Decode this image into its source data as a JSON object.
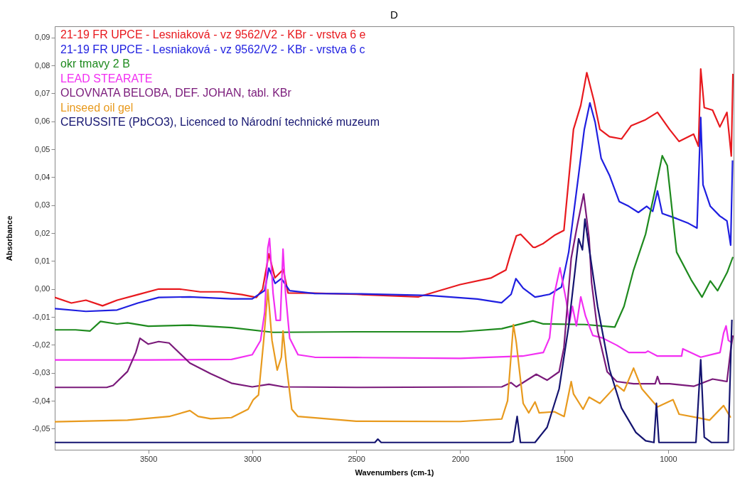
{
  "chart_data": {
    "type": "line",
    "title": "D",
    "xlabel": "Wavenumbers (cm-1)",
    "ylabel": "Absorbance",
    "legend": "top left",
    "xlim": [
      3950,
      685
    ],
    "xticks": [
      3500,
      3000,
      2500,
      2000,
      1500,
      1000
    ],
    "ylim": [
      -0.0575,
      0.094
    ],
    "yticks": [
      {
        "value": 0.09,
        "label": "0,09"
      },
      {
        "value": 0.08,
        "label": "0,08"
      },
      {
        "value": 0.07,
        "label": "0,07"
      },
      {
        "value": 0.06,
        "label": "0,06"
      },
      {
        "value": 0.05,
        "label": "0,05"
      },
      {
        "value": 0.04,
        "label": "0,04"
      },
      {
        "value": 0.03,
        "label": "0,03"
      },
      {
        "value": 0.02,
        "label": "0,02"
      },
      {
        "value": 0.01,
        "label": "0,01"
      },
      {
        "value": 0,
        "label": "0,00"
      },
      {
        "value": -0.01,
        "label": "-0,01"
      },
      {
        "value": -0.02,
        "label": "-0,02"
      },
      {
        "value": -0.03,
        "label": "-0,03"
      },
      {
        "value": -0.04,
        "label": "-0,04"
      },
      {
        "value": -0.05,
        "label": "-0,05"
      }
    ],
    "series": [
      {
        "name": "21-19 FR UPCE - Lesniaková - vz  9562/V2 - KBr - vrstva 6 e",
        "color": "#e8191e",
        "x": [
          3950,
          3870,
          3800,
          3720,
          3650,
          3550,
          3450,
          3350,
          3250,
          3150,
          3050,
          2980,
          2950,
          2920,
          2891,
          2851,
          2828,
          2700,
          2500,
          2200,
          2000,
          1850,
          1780,
          1760,
          1730,
          1709,
          1650,
          1640,
          1600,
          1547,
          1501,
          1455,
          1420,
          1391,
          1357,
          1328,
          1282,
          1224,
          1178,
          1108,
          1051,
          993,
          947,
          877,
          854,
          843,
          826,
          786,
          751,
          717,
          696,
          688
        ],
        "values": [
          -0.003,
          -0.005,
          -0.004,
          -0.006,
          -0.004,
          -0.002,
          0,
          0,
          -0.001,
          -0.001,
          -0.002,
          -0.003,
          0,
          0.0126,
          0.004,
          0.007,
          -0.0014,
          -0.0015,
          -0.0019,
          -0.0028,
          0.0016,
          0.004,
          0.0068,
          0.012,
          0.019,
          0.0196,
          0.015,
          0.0149,
          0.0163,
          0.0192,
          0.021,
          0.0571,
          0.0657,
          0.0774,
          0.0675,
          0.0571,
          0.0545,
          0.0537,
          0.0584,
          0.0606,
          0.0632,
          0.0571,
          0.0528,
          0.0554,
          0.0511,
          0.0787,
          0.0649,
          0.064,
          0.058,
          0.0632,
          0.0476,
          0.077
        ]
      },
      {
        "name": "21-19 FR UPCE - Lesniaková - vz  9562/V2 - KBr - vrstva 6 c",
        "color": "#1f1fe0",
        "x": [
          3950,
          3800,
          3650,
          3550,
          3450,
          3300,
          3100,
          3000,
          2940,
          2920,
          2890,
          2860,
          2820,
          2700,
          2494,
          2148,
          1917,
          1801,
          1755,
          1732,
          1697,
          1640,
          1570,
          1513,
          1478,
          1432,
          1403,
          1376,
          1351,
          1322,
          1282,
          1235,
          1189,
          1143,
          1103,
          1074,
          1051,
          1028,
          959,
          902,
          861,
          843,
          832,
          797,
          751,
          717,
          699,
          690
        ],
        "values": [
          -0.007,
          -0.008,
          -0.0075,
          -0.005,
          -0.003,
          -0.0028,
          -0.0035,
          -0.0035,
          -0.0005,
          0.0075,
          0.002,
          0.0037,
          -0.0006,
          -0.0016,
          -0.0017,
          -0.0023,
          -0.0036,
          -0.0049,
          -0.0019,
          0.0037,
          0.0003,
          -0.0029,
          -0.0019,
          0.0007,
          0.0132,
          0.0399,
          0.0571,
          0.0666,
          0.0597,
          0.0468,
          0.0407,
          0.0313,
          0.0296,
          0.0274,
          0.0296,
          0.0278,
          0.0351,
          0.027,
          0.0252,
          0.0235,
          0.0218,
          0.0614,
          0.0373,
          0.0296,
          0.0261,
          0.0244,
          0.0157,
          0.046
        ]
      },
      {
        "name": "okr tmavy 2 B",
        "color": "#1e8a1e",
        "x": [
          3950,
          3850,
          3780,
          3730,
          3650,
          3600,
          3500,
          3300,
          3100,
          2900,
          2500,
          2000,
          1800,
          1650,
          1600,
          1400,
          1256,
          1212,
          1166,
          1108,
          1062,
          1028,
          1004,
          959,
          889,
          837,
          797,
          762,
          716,
          688
        ],
        "values": [
          -0.0146,
          -0.0146,
          -0.015,
          -0.0116,
          -0.0125,
          -0.0121,
          -0.0133,
          -0.0129,
          -0.0138,
          -0.0155,
          -0.0153,
          -0.0153,
          -0.0142,
          -0.0114,
          -0.0125,
          -0.0127,
          -0.0136,
          -0.0062,
          0.0068,
          0.0197,
          0.0356,
          0.0477,
          0.0442,
          0.0132,
          0.0033,
          -0.0029,
          0.0029,
          -0.0006,
          0.0059,
          0.0115
        ]
      },
      {
        "name": "LEAD STEARATE",
        "color": "#f22ef2",
        "x": [
          3950,
          3500,
          3100,
          3000,
          2960,
          2940,
          2925,
          2917,
          2900,
          2885,
          2865,
          2852,
          2840,
          2820,
          2780,
          2700,
          2500,
          2000,
          1700,
          1600,
          1570,
          1550,
          1520,
          1489,
          1475,
          1460,
          1441,
          1420,
          1397,
          1362,
          1316,
          1247,
          1189,
          1108,
          1097,
          1051,
          935,
          929,
          843,
          750,
          733,
          721,
          710,
          693
        ],
        "values": [
          -0.0254,
          -0.0254,
          -0.0252,
          -0.0235,
          -0.0184,
          -0.0082,
          0.0147,
          0.0181,
          -0.0014,
          -0.0112,
          -0.0112,
          0.0143,
          -0.0014,
          -0.0176,
          -0.0235,
          -0.0244,
          -0.0245,
          -0.0248,
          -0.024,
          -0.0227,
          -0.0175,
          -0.0028,
          0.0076,
          -0.0045,
          -0.0123,
          -0.0062,
          -0.0132,
          -0.0028,
          -0.0097,
          -0.0166,
          -0.0175,
          -0.0201,
          -0.0227,
          -0.0227,
          -0.0222,
          -0.024,
          -0.024,
          -0.0214,
          -0.0244,
          -0.0227,
          -0.0158,
          -0.0132,
          -0.0184,
          -0.0192
        ]
      },
      {
        "name": "OLOVNATA BELOBA, DEF. JOHAN, tabl. KBr",
        "color": "#7a1a7a",
        "x": [
          3950,
          3700,
          3669,
          3600,
          3560,
          3540,
          3500,
          3450,
          3400,
          3300,
          3200,
          3100,
          3000,
          2920,
          2850,
          2500,
          1800,
          1755,
          1730,
          1634,
          1582,
          1524,
          1501,
          1466,
          1437,
          1406,
          1380,
          1368,
          1339,
          1293,
          1247,
          1166,
          1062,
          1051,
          1039,
          993,
          877,
          786,
          717,
          699,
          688
        ],
        "values": [
          -0.0352,
          -0.0352,
          -0.0345,
          -0.0295,
          -0.0227,
          -0.0176,
          -0.0197,
          -0.0188,
          -0.0193,
          -0.0265,
          -0.0303,
          -0.0337,
          -0.035,
          -0.0341,
          -0.035,
          -0.0352,
          -0.035,
          -0.0335,
          -0.035,
          -0.0305,
          -0.0326,
          -0.0296,
          -0.021,
          0.011,
          0.0227,
          0.034,
          0.0183,
          0.0024,
          -0.0149,
          -0.0296,
          -0.0331,
          -0.0339,
          -0.0339,
          -0.0313,
          -0.0339,
          -0.0339,
          -0.0348,
          -0.0322,
          -0.0331,
          -0.0218,
          -0.0166
        ]
      },
      {
        "name": "Linseed oil gel",
        "color": "#e89a1e",
        "x": [
          3950,
          3600,
          3400,
          3300,
          3260,
          3200,
          3100,
          3020,
          2995,
          2970,
          2945,
          2925,
          2905,
          2880,
          2860,
          2852,
          2835,
          2810,
          2780,
          2500,
          2000,
          1800,
          1772,
          1755,
          1744,
          1730,
          1697,
          1670,
          1640,
          1620,
          1547,
          1500,
          1466,
          1455,
          1409,
          1380,
          1328,
          1247,
          1212,
          1166,
          1126,
          1051,
          976,
          947,
          854,
          800,
          733,
          699
        ],
        "values": [
          -0.0475,
          -0.0469,
          -0.0456,
          -0.0435,
          -0.0456,
          -0.0464,
          -0.046,
          -0.043,
          -0.0396,
          -0.0379,
          -0.0184,
          -0.0002,
          -0.0184,
          -0.029,
          -0.0244,
          -0.015,
          -0.0278,
          -0.043,
          -0.0456,
          -0.0473,
          -0.0474,
          -0.0465,
          -0.04,
          -0.0235,
          -0.0127,
          -0.0192,
          -0.0409,
          -0.0443,
          -0.0404,
          -0.0443,
          -0.0439,
          -0.0456,
          -0.0331,
          -0.0375,
          -0.043,
          -0.0387,
          -0.0409,
          -0.0344,
          -0.0365,
          -0.0283,
          -0.0357,
          -0.0422,
          -0.0396,
          -0.0448,
          -0.0461,
          -0.0469,
          -0.0417,
          -0.046
        ]
      },
      {
        "name": "CERUSSITE (PbCO3),  Licenced to Národní technické muzeum",
        "color": "#141470",
        "x": [
          3950,
          2500,
          2410,
          2396,
          2380,
          1760,
          1745,
          1726,
          1710,
          1640,
          1582,
          1524,
          1478,
          1430,
          1412,
          1400,
          1339,
          1282,
          1224,
          1155,
          1108,
          1068,
          1056,
          1044,
          866,
          843,
          826,
          791,
          711,
          693
        ],
        "values": [
          -0.0549,
          -0.0549,
          -0.0549,
          -0.0537,
          -0.0549,
          -0.0549,
          -0.0545,
          -0.0456,
          -0.0549,
          -0.0549,
          -0.0495,
          -0.0357,
          -0.0132,
          0.018,
          0.014,
          0.025,
          -0.0062,
          -0.0287,
          -0.0426,
          -0.0513,
          -0.0543,
          -0.0549,
          -0.0409,
          -0.0549,
          -0.0549,
          -0.0253,
          -0.053,
          -0.0549,
          -0.0549,
          -0.011
        ]
      }
    ]
  }
}
